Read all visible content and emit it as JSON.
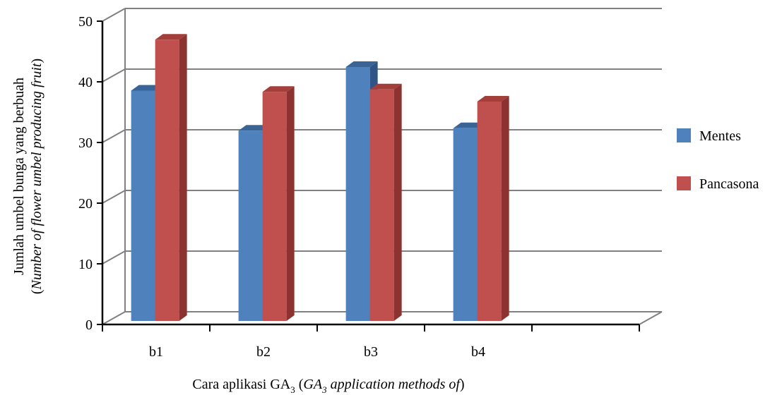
{
  "chart_data": {
    "type": "bar",
    "categories": [
      "b1",
      "b2",
      "b3",
      "b4"
    ],
    "series": [
      {
        "name": "Mentes",
        "values": [
          38.2,
          31.6,
          42.1,
          32.0
        ],
        "color": "#4F81BD",
        "top_color": "#3A6396",
        "side_color": "#2E5586"
      },
      {
        "name": "Pancasona",
        "values": [
          46.6,
          38.0,
          38.4,
          36.4
        ],
        "color": "#C0504D",
        "top_color": "#A33E3B",
        "side_color": "#8C3230"
      }
    ],
    "title": "",
    "xlabel": {
      "prefix": "Cara aplikasi GA",
      "prefix_sub": "3",
      "italic_main": "GA",
      "italic_sub": "3",
      "italic_rest": " application methods of"
    },
    "ylabel": {
      "line1": "Jumlah umbel bunga yang berbuah",
      "line2": "Number of flower umbel producing fruit"
    },
    "yticks": [
      "0",
      "10",
      "20",
      "30",
      "40",
      "50"
    ],
    "ylim": [
      0,
      50
    ],
    "grid": true,
    "legend_position": "right",
    "empty_slots": 1
  }
}
